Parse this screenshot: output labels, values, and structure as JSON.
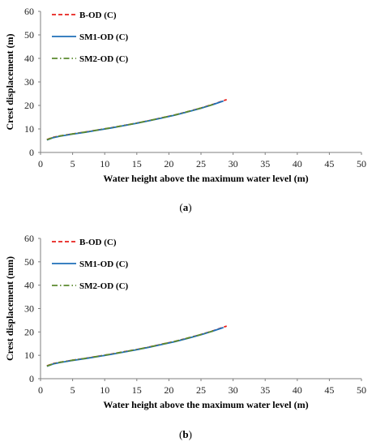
{
  "colors": {
    "b_od": "#e8211d",
    "sm1_od": "#1f6fb8",
    "sm2_od": "#5b8a2e",
    "axis": "#7f7f7f"
  },
  "chart_data": [
    {
      "type": "line",
      "title": "",
      "xlabel": "Water height above the maximum water level (m)",
      "ylabel": "Crest displacement (m)",
      "xlim": [
        0,
        50
      ],
      "ylim": [
        0,
        60
      ],
      "xticks": [
        0,
        5,
        10,
        15,
        20,
        25,
        30,
        35,
        40,
        45,
        50
      ],
      "yticks": [
        0,
        10,
        20,
        30,
        40,
        50,
        60
      ],
      "grid": false,
      "legend_position": "top-left",
      "caption_open": "(",
      "caption_letter": "a",
      "caption_close": ")",
      "series": [
        {
          "name": "B-OD (C)",
          "style": "dashed",
          "color": "#e8211d",
          "x": [
            1,
            2,
            3,
            5,
            7,
            9,
            11,
            13,
            15,
            17,
            19,
            21,
            23,
            25,
            27,
            29
          ],
          "y": [
            5.5,
            6.5,
            7.0,
            7.9,
            8.7,
            9.6,
            10.5,
            11.5,
            12.5,
            13.6,
            14.8,
            16.0,
            17.4,
            18.9,
            20.6,
            22.5
          ]
        },
        {
          "name": "SM1-OD (C)",
          "style": "solid",
          "color": "#1f6fb8",
          "x": [
            1,
            2,
            3,
            5,
            7,
            9,
            11,
            13,
            15,
            17,
            19,
            21,
            23,
            25,
            27,
            28.5
          ],
          "y": [
            5.3,
            6.3,
            6.9,
            7.8,
            8.6,
            9.5,
            10.4,
            11.4,
            12.4,
            13.5,
            14.7,
            15.9,
            17.3,
            18.8,
            20.5,
            21.9
          ]
        },
        {
          "name": "SM2-OD (C)",
          "style": "dashdot",
          "color": "#5b8a2e",
          "x": [
            1,
            2,
            3,
            5,
            7,
            9,
            11,
            13,
            15,
            17,
            19,
            21,
            23,
            25,
            27
          ],
          "y": [
            5.4,
            6.4,
            7.0,
            7.9,
            8.7,
            9.6,
            10.5,
            11.5,
            12.5,
            13.6,
            14.8,
            16.0,
            17.4,
            18.9,
            20.5
          ]
        }
      ]
    },
    {
      "type": "line",
      "title": "",
      "xlabel": "Water height above the maximum water level (m)",
      "ylabel": "Crest displacement (mm)",
      "xlim": [
        0,
        50
      ],
      "ylim": [
        0,
        60
      ],
      "xticks": [
        0,
        5,
        10,
        15,
        20,
        25,
        30,
        35,
        40,
        45,
        50
      ],
      "yticks": [
        0,
        10,
        20,
        30,
        40,
        50,
        60
      ],
      "grid": false,
      "legend_position": "top-left",
      "caption_open": "(",
      "caption_letter": "b",
      "caption_close": ")",
      "series": [
        {
          "name": "B-OD (C)",
          "style": "dashed",
          "color": "#e8211d",
          "x": [
            1,
            2,
            3,
            5,
            7,
            9,
            11,
            13,
            15,
            17,
            19,
            21,
            23,
            25,
            27,
            29
          ],
          "y": [
            5.5,
            6.5,
            7.0,
            7.9,
            8.7,
            9.6,
            10.5,
            11.5,
            12.5,
            13.6,
            14.8,
            16.0,
            17.4,
            18.9,
            20.6,
            22.5
          ]
        },
        {
          "name": "SM1-OD (C)",
          "style": "solid",
          "color": "#1f6fb8",
          "x": [
            1,
            2,
            3,
            5,
            7,
            9,
            11,
            13,
            15,
            17,
            19,
            21,
            23,
            25,
            27,
            28.5
          ],
          "y": [
            5.3,
            6.3,
            6.9,
            7.8,
            8.6,
            9.5,
            10.4,
            11.4,
            12.4,
            13.5,
            14.7,
            15.9,
            17.3,
            18.8,
            20.5,
            21.9
          ]
        },
        {
          "name": "SM2-OD (C)",
          "style": "dashdot",
          "color": "#5b8a2e",
          "x": [
            1,
            2,
            3,
            5,
            7,
            9,
            11,
            13,
            15,
            17,
            19,
            21,
            23,
            25,
            27
          ],
          "y": [
            5.4,
            6.4,
            7.0,
            7.9,
            8.7,
            9.6,
            10.5,
            11.5,
            12.5,
            13.6,
            14.8,
            16.0,
            17.4,
            18.9,
            20.5
          ]
        }
      ]
    }
  ]
}
